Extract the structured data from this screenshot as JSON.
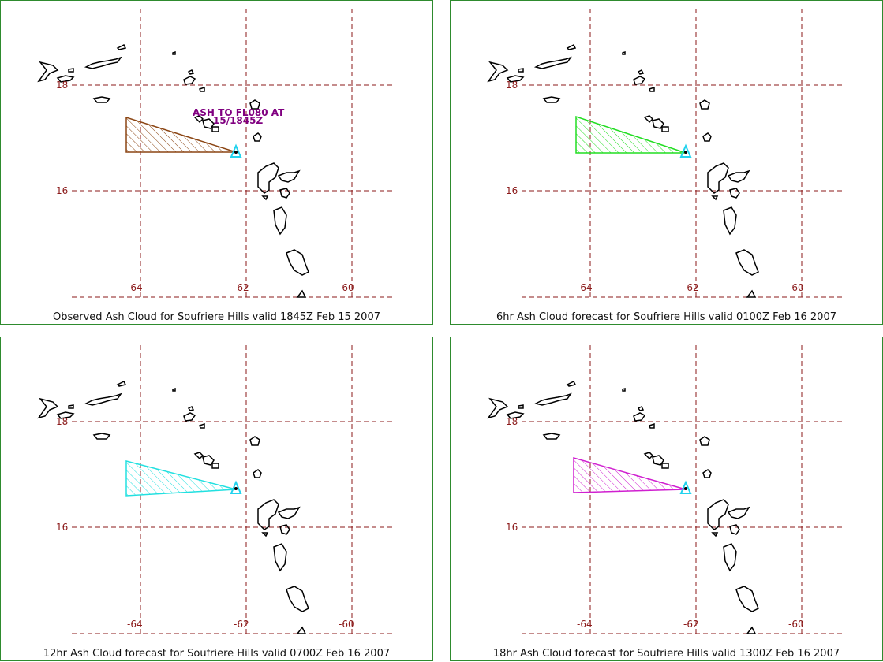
{
  "colors": {
    "frame": "#2e8b2e",
    "grid": "#8b1a1a",
    "tick_label": "#8b1a1a",
    "coast": "#000000",
    "volcano_marker": "#22d3ee",
    "annotation": "#800080"
  },
  "grid": {
    "lat_labels": [
      "18",
      "16"
    ],
    "lon_labels": [
      "-64",
      "-62",
      "-60"
    ]
  },
  "panels": [
    {
      "title": "Observed Ash Cloud for Soufriere  Hills valid 1845Z Feb 15 2007",
      "ash_color": "#8b4513",
      "annotation_line1": "ASH TO FL080 AT",
      "annotation_line2": "15/1845Z"
    },
    {
      "title": "6hr Ash Cloud forecast for Soufriere  Hills valid 0100Z Feb 16 2007",
      "ash_color": "#22dd22"
    },
    {
      "title": "12hr Ash Cloud forecast for Soufriere  Hills valid 0700Z Feb 16 2007",
      "ash_color": "#22e0e0"
    },
    {
      "title": "18hr Ash Cloud forecast for Soufriere  Hills valid 1300Z Feb 16 2007",
      "ash_color": "#d020d0"
    }
  ]
}
